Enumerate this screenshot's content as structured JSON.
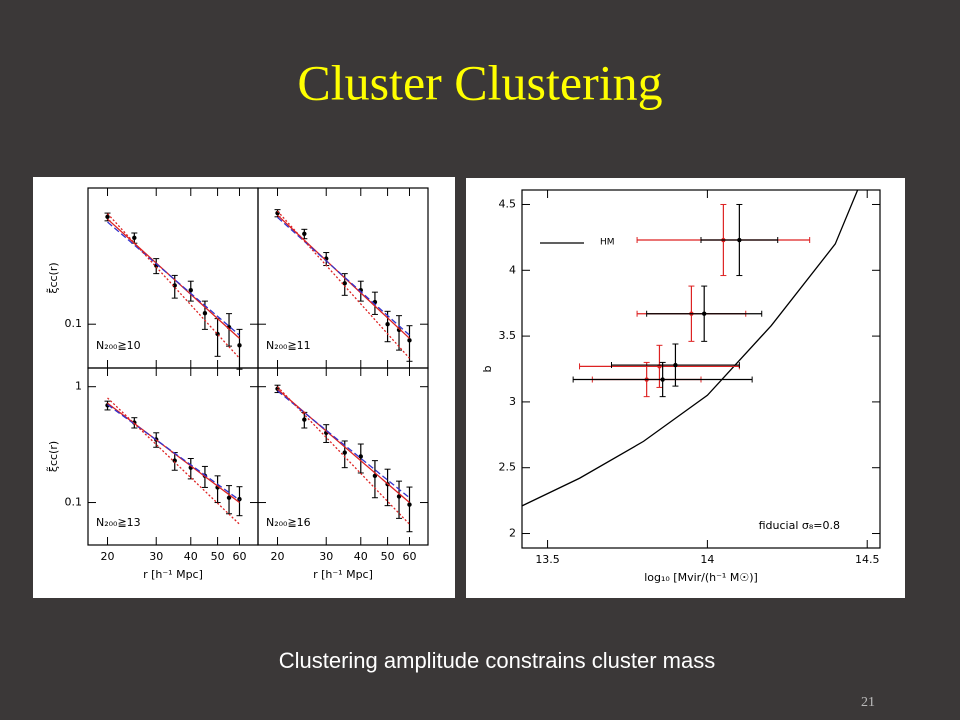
{
  "title": "Cluster Clustering",
  "caption": "Clustering amplitude constrains cluster mass",
  "page_number": "21",
  "chart_data": [
    {
      "type": "errorbar",
      "annotation": "N₂₀₀≧10",
      "ylabel": "ξ̃cc(r)",
      "xlog": true,
      "ylog": true,
      "xlim": [
        17,
        70
      ],
      "ylim": [
        0.041,
        1.6
      ],
      "xticks": [
        20,
        30,
        40,
        50,
        60
      ],
      "yticks": [
        0.1
      ],
      "x_tick_labels": false,
      "y_tick_labels": true,
      "series": [
        {
          "color": "#000000",
          "x": [
            20,
            25,
            30,
            35,
            40,
            45,
            50,
            55,
            60
          ],
          "values": [
            0.89,
            0.58,
            0.33,
            0.22,
            0.2,
            0.125,
            0.082,
            0.094,
            0.065
          ],
          "yerr": [
            0.07,
            0.06,
            0.05,
            0.05,
            0.04,
            0.035,
            0.03,
            0.03,
            0.025
          ]
        },
        {
          "color": "#dd2222",
          "style": "solid",
          "x": [
            20,
            60
          ],
          "values": [
            0.85,
            0.075
          ]
        },
        {
          "color": "#3333cc",
          "style": "dashed",
          "x": [
            20,
            60
          ],
          "values": [
            0.8,
            0.08
          ]
        },
        {
          "color": "#dd2222",
          "style": "dotted",
          "x": [
            20,
            60
          ],
          "values": [
            0.95,
            0.05
          ]
        }
      ]
    },
    {
      "type": "errorbar",
      "annotation": "N₂₀₀≧11",
      "xlog": true,
      "ylog": true,
      "xlim": [
        17,
        70
      ],
      "ylim": [
        0.041,
        1.6
      ],
      "xticks": [
        20,
        30,
        40,
        50,
        60
      ],
      "yticks": [
        0.1
      ],
      "x_tick_labels": false,
      "y_tick_labels": false,
      "series": [
        {
          "color": "#000000",
          "x": [
            20,
            25,
            30,
            35,
            40,
            45,
            50,
            55,
            60
          ],
          "values": [
            0.96,
            0.63,
            0.38,
            0.23,
            0.2,
            0.157,
            0.1,
            0.089,
            0.072
          ],
          "yerr": [
            0.07,
            0.06,
            0.05,
            0.05,
            0.04,
            0.035,
            0.03,
            0.03,
            0.025
          ]
        },
        {
          "color": "#dd2222",
          "style": "solid",
          "x": [
            20,
            60
          ],
          "values": [
            0.92,
            0.075
          ]
        },
        {
          "color": "#3333cc",
          "style": "dashed",
          "x": [
            20,
            60
          ],
          "values": [
            0.88,
            0.08
          ]
        },
        {
          "color": "#dd2222",
          "style": "dotted",
          "x": [
            20,
            60
          ],
          "values": [
            1.0,
            0.05
          ]
        }
      ]
    },
    {
      "type": "errorbar",
      "annotation": "N₂₀₀≧13",
      "ylabel": "ξ̃cc(r)",
      "xlabel": "r [h⁻¹ Mpc]",
      "xlog": true,
      "ylog": true,
      "xlim": [
        17,
        70
      ],
      "ylim": [
        0.043,
        1.45
      ],
      "xticks": [
        20,
        30,
        40,
        50,
        60
      ],
      "yticks": [
        0.1,
        1
      ],
      "x_tick_labels": true,
      "y_tick_labels": true,
      "series": [
        {
          "color": "#000000",
          "x": [
            20,
            25,
            30,
            35,
            40,
            45,
            50,
            55,
            60
          ],
          "values": [
            0.69,
            0.49,
            0.35,
            0.23,
            0.2,
            0.17,
            0.135,
            0.11,
            0.107
          ],
          "yerr": [
            0.06,
            0.05,
            0.05,
            0.04,
            0.04,
            0.035,
            0.035,
            0.03,
            0.03
          ]
        },
        {
          "color": "#dd2222",
          "style": "solid",
          "x": [
            20,
            60
          ],
          "values": [
            0.72,
            0.1
          ]
        },
        {
          "color": "#3333cc",
          "style": "dashed",
          "x": [
            20,
            60
          ],
          "values": [
            0.7,
            0.105
          ]
        },
        {
          "color": "#dd2222",
          "style": "dotted",
          "x": [
            20,
            60
          ],
          "values": [
            0.8,
            0.065
          ]
        }
      ]
    },
    {
      "type": "errorbar",
      "annotation": "N₂₀₀≧16",
      "xlabel": "r [h⁻¹ Mpc]",
      "xlog": true,
      "ylog": true,
      "xlim": [
        17,
        70
      ],
      "ylim": [
        0.043,
        1.45
      ],
      "xticks": [
        20,
        30,
        40,
        50,
        60
      ],
      "yticks": [
        0.1,
        1
      ],
      "x_tick_labels": true,
      "y_tick_labels": false,
      "series": [
        {
          "color": "#000000",
          "x": [
            20,
            25,
            30,
            35,
            40,
            45,
            50,
            55,
            60
          ],
          "values": [
            0.96,
            0.52,
            0.4,
            0.27,
            0.25,
            0.17,
            0.144,
            0.113,
            0.096
          ],
          "yerr": [
            0.07,
            0.08,
            0.07,
            0.07,
            0.07,
            0.06,
            0.05,
            0.04,
            0.04
          ]
        },
        {
          "color": "#dd2222",
          "style": "solid",
          "x": [
            20,
            60
          ],
          "values": [
            0.95,
            0.1
          ]
        },
        {
          "color": "#3333cc",
          "style": "dashed",
          "x": [
            20,
            60
          ],
          "values": [
            0.92,
            0.11
          ]
        },
        {
          "color": "#dd2222",
          "style": "dotted",
          "x": [
            20,
            60
          ],
          "values": [
            1.0,
            0.065
          ]
        }
      ]
    },
    {
      "type": "errorbar",
      "xlabel": "log₁₀ [Mvir/(h⁻¹ M☉)]",
      "ylabel": "b",
      "annotation": "fiducial σ₈=0.8",
      "xlim": [
        13.42,
        14.54
      ],
      "ylim": [
        1.89,
        4.61
      ],
      "xticks": [
        13.5,
        14,
        14.5
      ],
      "yticks": [
        2,
        2.5,
        3,
        3.5,
        4,
        4.5
      ],
      "x_tick_labels": true,
      "y_tick_labels": true,
      "series": [
        {
          "name": "HM",
          "color": "#000000",
          "style": "solid",
          "x": [
            13.42,
            13.6,
            13.8,
            14.0,
            14.2,
            14.4,
            14.47
          ],
          "values": [
            2.21,
            2.42,
            2.7,
            3.05,
            3.58,
            4.2,
            4.61
          ]
        },
        {
          "color": "#dd2222",
          "x": [
            14.05,
            13.95,
            13.85,
            13.81
          ],
          "values": [
            4.23,
            3.67,
            3.27,
            3.17
          ],
          "xerr": [
            0.27,
            0.17,
            0.25,
            0.17
          ],
          "yerr": [
            0.27,
            0.21,
            0.16,
            0.13
          ]
        },
        {
          "color": "#000000",
          "x": [
            14.1,
            13.99,
            13.9,
            13.86
          ],
          "values": [
            4.23,
            3.67,
            3.28,
            3.17
          ],
          "xerr": [
            0.12,
            0.18,
            0.2,
            0.28
          ],
          "yerr": [
            0.27,
            0.21,
            0.16,
            0.13
          ]
        }
      ]
    }
  ]
}
